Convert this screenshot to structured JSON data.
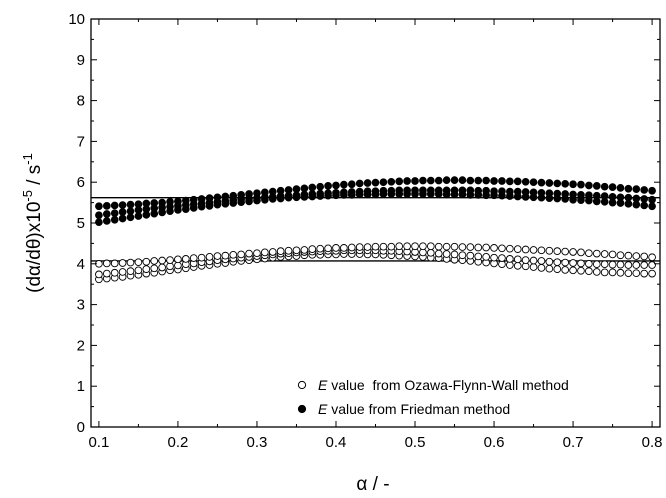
{
  "chart_data": {
    "type": "scatter",
    "title": "",
    "xlabel": "α / -",
    "ylabel": {
      "prefix": "(dα/dθ)x10",
      "sup1": "-5",
      "mid": " / s",
      "sup2": "-1"
    },
    "xlim": [
      0.09,
      0.81
    ],
    "ylim": [
      0,
      10
    ],
    "xticks": [
      "0.1",
      "0.2",
      "0.3",
      "0.4",
      "0.5",
      "0.6",
      "0.7",
      "0.8"
    ],
    "yticks": [
      "0",
      "1",
      "2",
      "3",
      "4",
      "5",
      "6",
      "7",
      "8",
      "9",
      "10"
    ],
    "grid": false,
    "legend_position": "bottom-right",
    "x": [
      0.1,
      0.11,
      0.12,
      0.13,
      0.14,
      0.15,
      0.16,
      0.17,
      0.18,
      0.19,
      0.2,
      0.21,
      0.22,
      0.23,
      0.24,
      0.25,
      0.26,
      0.27,
      0.28,
      0.29,
      0.3,
      0.31,
      0.32,
      0.33,
      0.34,
      0.35,
      0.36,
      0.37,
      0.38,
      0.39,
      0.4,
      0.41,
      0.42,
      0.43,
      0.44,
      0.45,
      0.46,
      0.47,
      0.48,
      0.49,
      0.5,
      0.51,
      0.52,
      0.53,
      0.54,
      0.55,
      0.56,
      0.57,
      0.58,
      0.59,
      0.6,
      0.61,
      0.62,
      0.63,
      0.64,
      0.65,
      0.66,
      0.67,
      0.68,
      0.69,
      0.7,
      0.71,
      0.72,
      0.73,
      0.74,
      0.75,
      0.76,
      0.77,
      0.78,
      0.79,
      0.8
    ],
    "series": [
      {
        "name": "",
        "marker": "open-circle",
        "values": [
          3.62,
          3.64,
          3.66,
          3.68,
          3.71,
          3.73,
          3.76,
          3.78,
          3.81,
          3.84,
          3.86,
          3.89,
          3.92,
          3.95,
          3.97,
          4.0,
          4.02,
          4.05,
          4.07,
          4.09,
          4.11,
          4.13,
          4.15,
          4.17,
          4.18,
          4.19,
          4.21,
          4.22,
          4.22,
          4.23,
          4.23,
          4.24,
          4.24,
          4.24,
          4.23,
          4.23,
          4.22,
          4.21,
          4.2,
          4.19,
          4.18,
          4.17,
          4.15,
          4.14,
          4.12,
          4.1,
          4.09,
          4.07,
          4.05,
          4.03,
          4.01,
          3.99,
          3.97,
          3.95,
          3.94,
          3.92,
          3.9,
          3.88,
          3.87,
          3.85,
          3.84,
          3.83,
          3.82,
          3.8,
          3.79,
          3.79,
          3.78,
          3.77,
          3.77,
          3.76,
          3.76
        ]
      },
      {
        "name": "",
        "marker": "open-circle",
        "values": [
          3.74,
          3.76,
          3.78,
          3.8,
          3.82,
          3.84,
          3.87,
          3.89,
          3.91,
          3.94,
          3.96,
          3.99,
          4.01,
          4.04,
          4.06,
          4.09,
          4.11,
          4.13,
          4.15,
          4.17,
          4.19,
          4.21,
          4.23,
          4.25,
          4.26,
          4.28,
          4.29,
          4.3,
          4.31,
          4.32,
          4.32,
          4.33,
          4.33,
          4.33,
          4.33,
          4.33,
          4.32,
          4.32,
          4.31,
          4.3,
          4.29,
          4.28,
          4.27,
          4.25,
          4.24,
          4.23,
          4.21,
          4.2,
          4.18,
          4.17,
          4.15,
          4.14,
          4.12,
          4.11,
          4.09,
          4.08,
          4.07,
          4.05,
          4.04,
          4.03,
          4.02,
          4.01,
          4.0,
          3.99,
          3.99,
          3.98,
          3.98,
          3.97,
          3.97,
          3.97,
          3.97
        ]
      },
      {
        "name": "",
        "marker": "open-circle",
        "values": [
          4.0,
          4.01,
          4.01,
          4.02,
          4.03,
          4.04,
          4.05,
          4.07,
          4.08,
          4.09,
          4.11,
          4.12,
          4.14,
          4.15,
          4.17,
          4.19,
          4.2,
          4.22,
          4.23,
          4.25,
          4.26,
          4.28,
          4.29,
          4.31,
          4.32,
          4.33,
          4.34,
          4.36,
          4.37,
          4.38,
          4.39,
          4.39,
          4.4,
          4.41,
          4.41,
          4.42,
          4.42,
          4.42,
          4.43,
          4.43,
          4.43,
          4.43,
          4.43,
          4.42,
          4.42,
          4.42,
          4.41,
          4.41,
          4.4,
          4.4,
          4.39,
          4.38,
          4.37,
          4.36,
          4.35,
          4.34,
          4.33,
          4.32,
          4.31,
          4.3,
          4.29,
          4.28,
          4.26,
          4.25,
          4.24,
          4.23,
          4.21,
          4.2,
          4.19,
          4.18,
          4.16
        ]
      },
      {
        "name": "",
        "marker": "filled-circle",
        "values": [
          5.02,
          5.05,
          5.08,
          5.11,
          5.14,
          5.17,
          5.2,
          5.23,
          5.26,
          5.29,
          5.32,
          5.34,
          5.37,
          5.4,
          5.42,
          5.45,
          5.47,
          5.49,
          5.51,
          5.53,
          5.55,
          5.57,
          5.59,
          5.6,
          5.62,
          5.63,
          5.64,
          5.65,
          5.66,
          5.67,
          5.68,
          5.69,
          5.69,
          5.7,
          5.7,
          5.7,
          5.71,
          5.71,
          5.71,
          5.71,
          5.71,
          5.71,
          5.71,
          5.71,
          5.7,
          5.7,
          5.7,
          5.69,
          5.69,
          5.68,
          5.68,
          5.67,
          5.66,
          5.65,
          5.64,
          5.63,
          5.62,
          5.61,
          5.6,
          5.59,
          5.57,
          5.56,
          5.55,
          5.53,
          5.52,
          5.5,
          5.49,
          5.47,
          5.45,
          5.43,
          5.41
        ]
      },
      {
        "name": "",
        "marker": "filled-circle",
        "values": [
          5.19,
          5.22,
          5.24,
          5.27,
          5.29,
          5.32,
          5.34,
          5.36,
          5.38,
          5.4,
          5.42,
          5.44,
          5.46,
          5.48,
          5.5,
          5.52,
          5.54,
          5.56,
          5.58,
          5.6,
          5.61,
          5.63,
          5.64,
          5.66,
          5.67,
          5.68,
          5.7,
          5.71,
          5.72,
          5.73,
          5.74,
          5.75,
          5.76,
          5.77,
          5.78,
          5.78,
          5.79,
          5.79,
          5.8,
          5.8,
          5.8,
          5.8,
          5.8,
          5.8,
          5.8,
          5.8,
          5.8,
          5.8,
          5.79,
          5.79,
          5.78,
          5.78,
          5.77,
          5.77,
          5.76,
          5.75,
          5.74,
          5.73,
          5.72,
          5.71,
          5.7,
          5.69,
          5.68,
          5.67,
          5.66,
          5.64,
          5.63,
          5.62,
          5.6,
          5.59,
          5.57
        ]
      },
      {
        "name": "",
        "marker": "filled-circle",
        "values": [
          5.41,
          5.42,
          5.43,
          5.44,
          5.45,
          5.46,
          5.48,
          5.49,
          5.5,
          5.52,
          5.53,
          5.55,
          5.57,
          5.59,
          5.61,
          5.63,
          5.65,
          5.67,
          5.69,
          5.71,
          5.73,
          5.75,
          5.77,
          5.79,
          5.81,
          5.83,
          5.85,
          5.87,
          5.89,
          5.91,
          5.92,
          5.94,
          5.95,
          5.97,
          5.98,
          5.99,
          6.0,
          6.01,
          6.02,
          6.03,
          6.03,
          6.04,
          6.04,
          6.04,
          6.05,
          6.05,
          6.05,
          6.04,
          6.04,
          6.04,
          6.03,
          6.03,
          6.02,
          6.02,
          6.01,
          6.0,
          5.99,
          5.98,
          5.97,
          5.96,
          5.95,
          5.94,
          5.92,
          5.91,
          5.89,
          5.88,
          5.86,
          5.84,
          5.83,
          5.81,
          5.79
        ]
      }
    ],
    "reference_lines": [
      {
        "y": 4.07,
        "x_range": [
          0.09,
          0.81
        ]
      },
      {
        "y": 5.62,
        "x_range": [
          0.09,
          0.81
        ]
      }
    ],
    "legend": [
      {
        "marker": "open-circle",
        "italic": "E",
        "text": " value  from Ozawa-Flynn-Wall method"
      },
      {
        "marker": "filled-circle",
        "italic": "E",
        "text": " value from Friedman method"
      }
    ]
  }
}
